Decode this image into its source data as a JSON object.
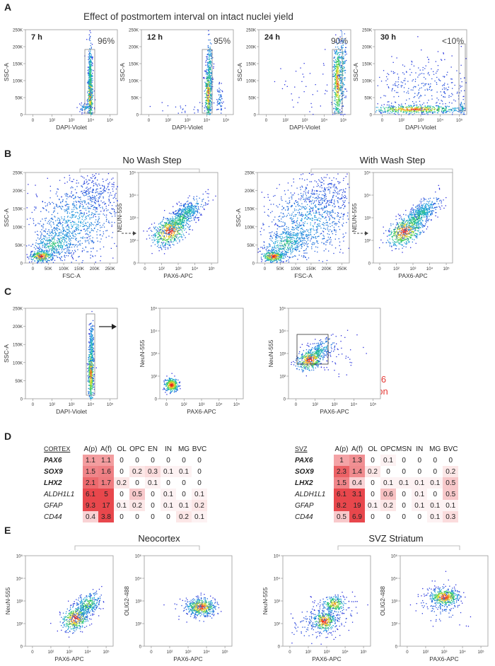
{
  "panel_letters": {
    "A": "A",
    "B": "B",
    "C": "C",
    "D": "D",
    "E": "E"
  },
  "panelA": {
    "title": "Effect of postmortem interval on intact nuclei yield",
    "plots": [
      {
        "label": "7 h",
        "percent": "96%",
        "ylabel": "SSC-A",
        "xlabel": "DAPI-Violet"
      },
      {
        "label": "12 h",
        "percent": "95%",
        "ylabel": "SSC-A",
        "xlabel": "DAPI-Violet"
      },
      {
        "label": "24 h",
        "percent": "90%",
        "ylabel": "SSC-A",
        "xlabel": "DAPI-Violet"
      },
      {
        "label": "30 h",
        "percent": "<10%",
        "ylabel": "SSC-A",
        "xlabel": "DAPI-Violet"
      }
    ],
    "yticks": [
      "250K",
      "200K",
      "150K",
      "100K",
      "50K",
      "0"
    ],
    "xticks": [
      "0",
      "10²",
      "10³",
      "10⁴",
      "10⁵"
    ]
  },
  "panelB": {
    "groups": [
      {
        "title": "No Wash Step"
      },
      {
        "title": "With Wash Step"
      }
    ],
    "scatter": {
      "ylabel": "SSC-A",
      "xlabel": "FSC-A",
      "yticks": [
        "250K",
        "200K",
        "150K",
        "100K",
        "50K",
        "0"
      ],
      "xticks": [
        "0",
        "50K",
        "100K",
        "150K",
        "200K",
        "250K"
      ]
    },
    "fluor": {
      "ylabel": "NEUN-555",
      "xlabel": "PAX6-APC"
    }
  },
  "panelC": {
    "plot1": {
      "ylabel": "SSC-A",
      "xlabel": "DAPI-Violet"
    },
    "plot2": {
      "title": "DAPI only",
      "ylabel": "NeuN-555",
      "xlabel": "PAX6-APC"
    },
    "plot3": {
      "title_neun": "NEUN",
      "title_sep": " / ",
      "title_pax6": "PAX6",
      "note_line1": "NO PAX6",
      "note_line2": "separation",
      "ylabel": "NeuN-555",
      "xlabel": "PAX6-APC"
    },
    "log_yticks": [
      "10⁵",
      "10⁴",
      "10³",
      "10²",
      "0"
    ],
    "log_xticks": [
      "0",
      "10²",
      "10³",
      "10⁴",
      "10⁵"
    ]
  },
  "panelD": {
    "tables": [
      {
        "region": "CORTEX",
        "columns": [
          "A(p)",
          "A(f)",
          "OL",
          "OPC",
          "EN",
          "IN",
          "MG",
          "BVC"
        ],
        "rows": [
          {
            "gene": "PAX6",
            "bold": true,
            "values": [
              "1.1",
              "1.1",
              "0",
              "0",
              "0",
              "0",
              "0",
              "0"
            ]
          },
          {
            "gene": "SOX9",
            "bold": true,
            "values": [
              "1.5",
              "1.6",
              "0",
              "0.2",
              "0.3",
              "0.1",
              "0.1",
              "0"
            ]
          },
          {
            "gene": "LHX2",
            "bold": true,
            "values": [
              "2.1",
              "1.7",
              "0.2",
              "0",
              "0.1",
              "0",
              "0",
              "0"
            ]
          },
          {
            "gene": "ALDH1L1",
            "bold": false,
            "values": [
              "6.1",
              "5",
              "0",
              "0.5",
              "0",
              "0.1",
              "0",
              "0.1"
            ]
          },
          {
            "gene": "GFAP",
            "bold": false,
            "values": [
              "9.3",
              "17",
              "0.1",
              "0.2",
              "0",
              "0.1",
              "0.1",
              "0.2"
            ]
          },
          {
            "gene": "CD44",
            "bold": false,
            "values": [
              "0.4",
              "3.8",
              "0",
              "0",
              "0",
              "0",
              "0.2",
              "0.1"
            ]
          }
        ]
      },
      {
        "region": "SVZ",
        "columns": [
          "A(p)",
          "A(f)",
          "OL",
          "OPC",
          "MSN",
          "IN",
          "MG",
          "BVC"
        ],
        "rows": [
          {
            "gene": "PAX6",
            "bold": true,
            "values": [
              "1",
              "1.3",
              "0",
              "0.1",
              "0",
              "0",
              "0",
              "0"
            ]
          },
          {
            "gene": "SOX9",
            "bold": true,
            "values": [
              "2.3",
              "1.4",
              "0.2",
              "0",
              "0",
              "0",
              "0",
              "0.2"
            ]
          },
          {
            "gene": "LHX2",
            "bold": true,
            "values": [
              "1.5",
              "0.4",
              "0",
              "0.1",
              "0.1",
              "0.1",
              "0.1",
              "0.5"
            ]
          },
          {
            "gene": "ALDH1L1",
            "bold": false,
            "values": [
              "6.1",
              "3.1",
              "0",
              "0.6",
              "0",
              "0.1",
              "0",
              "0.5"
            ]
          },
          {
            "gene": "GFAP",
            "bold": false,
            "values": [
              "8.2",
              "19",
              "0.1",
              "0.2",
              "0",
              "0.1",
              "0.1",
              "0.1"
            ]
          },
          {
            "gene": "CD44",
            "bold": false,
            "values": [
              "0.5",
              "6.9",
              "0",
              "0",
              "0",
              "0",
              "0.1",
              "0.3"
            ]
          }
        ]
      }
    ]
  },
  "panelE": {
    "groups": [
      {
        "title": "Neocortex"
      },
      {
        "title": "SVZ Striatum"
      }
    ],
    "ylabel_neun": "NeuN-555",
    "ylabel_olig": "OLIG2-488",
    "xlabel": "PAX6-APC",
    "log_yticks": [
      "10⁵",
      "10⁴",
      "10³",
      "10²",
      "0"
    ],
    "log_xticks": [
      "0",
      "10²",
      "10³",
      "10⁴",
      "10⁵"
    ]
  },
  "colors": {
    "red_text": "#e53935",
    "heat_high": "#e8474c",
    "axis": "#444444"
  }
}
